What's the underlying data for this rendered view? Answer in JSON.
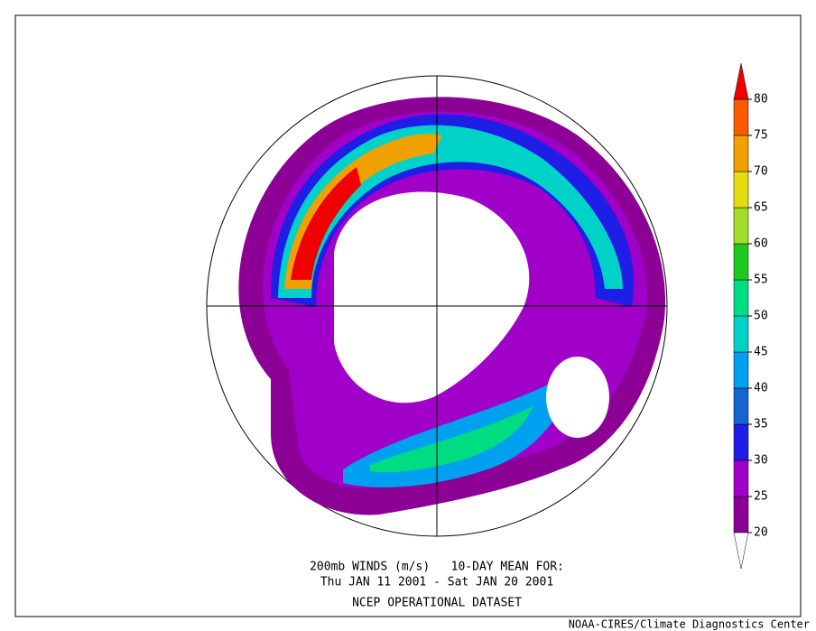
{
  "map": {
    "title_lines": [
      "200mb WINDS (m/s)   10-DAY MEAN FOR:",
      "Thu JAN 11 2001 - Sat JAN 20 2001",
      "NCEP OPERATIONAL DATASET"
    ],
    "credit": "NOAA-CIRES/Climate Diagnostics Center",
    "colorbar": {
      "levels": [
        20,
        25,
        30,
        35,
        40,
        45,
        50,
        55,
        60,
        65,
        70,
        75,
        80
      ],
      "colors": [
        "#8c0096",
        "#a000c8",
        "#1e1ee6",
        "#1464d2",
        "#00a0f0",
        "#00d2c8",
        "#00dc82",
        "#1ec81e",
        "#a0dc28",
        "#e6dc14",
        "#f0a000",
        "#fa5a00"
      ],
      "over_color": "#f00000",
      "under_color": "#ffffff"
    }
  }
}
